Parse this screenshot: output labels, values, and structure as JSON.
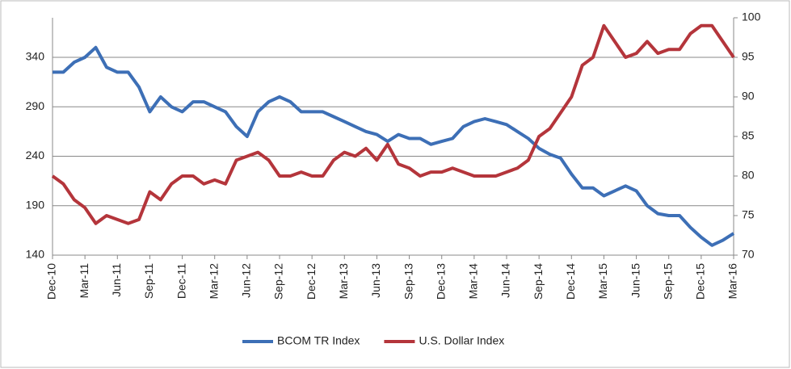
{
  "chart_data": {
    "type": "line",
    "categories": [
      "Dec-10",
      null,
      null,
      "Mar-11",
      null,
      null,
      "Jun-11",
      null,
      null,
      "Sep-11",
      null,
      null,
      "Dec-11",
      null,
      null,
      "Mar-12",
      null,
      null,
      "Jun-12",
      null,
      null,
      "Sep-12",
      null,
      null,
      "Dec-12",
      null,
      null,
      "Mar-13",
      null,
      null,
      "Jun-13",
      null,
      null,
      "Sep-13",
      null,
      null,
      "Dec-13",
      null,
      null,
      "Mar-14",
      null,
      null,
      "Jun-14",
      null,
      null,
      "Sep-14",
      null,
      null,
      "Dec-14",
      null,
      null,
      "Mar-15",
      null,
      null,
      "Jun-15",
      null,
      null,
      "Sep-15",
      null,
      null,
      "Dec-15",
      null,
      null,
      "Mar-16"
    ],
    "series": [
      {
        "name": "BCOM TR Index",
        "color": "#3d6fb6",
        "axis": "y",
        "values": [
          325,
          325,
          335,
          340,
          350,
          330,
          325,
          325,
          310,
          285,
          300,
          290,
          285,
          295,
          295,
          290,
          285,
          270,
          260,
          285,
          295,
          300,
          295,
          285,
          285,
          285,
          280,
          275,
          270,
          265,
          262,
          255,
          262,
          258,
          258,
          252,
          255,
          258,
          270,
          275,
          278,
          275,
          272,
          265,
          258,
          248,
          242,
          238,
          222,
          208,
          208,
          200,
          205,
          210,
          205,
          190,
          182,
          180,
          180,
          168,
          158,
          150,
          155,
          162
        ]
      },
      {
        "name": "U.S. Dollar Index",
        "color": "#b4353b",
        "axis": "y2",
        "values": [
          80,
          79,
          77,
          76,
          74,
          75,
          74.5,
          74,
          74.5,
          78,
          77,
          79,
          80,
          80,
          79,
          79.5,
          79,
          82,
          82.5,
          83,
          82,
          80,
          80,
          80.5,
          80,
          80,
          82,
          83,
          82.5,
          83.5,
          82,
          84,
          81.5,
          81,
          80,
          80.5,
          80.5,
          81,
          80.5,
          80,
          80,
          80,
          80.5,
          81,
          82,
          85,
          86,
          88,
          90,
          94,
          95,
          99,
          97,
          95,
          95.5,
          97,
          95.5,
          96,
          96,
          98,
          99,
          99,
          97,
          95
        ]
      }
    ],
    "ylim": [
      140,
      380
    ],
    "yticks": [
      140,
      190,
      240,
      290,
      340
    ],
    "y2lim": [
      70,
      100
    ],
    "y2ticks": [
      70,
      75,
      80,
      85,
      90,
      95,
      100
    ],
    "grid": true,
    "legend": "bottom"
  }
}
